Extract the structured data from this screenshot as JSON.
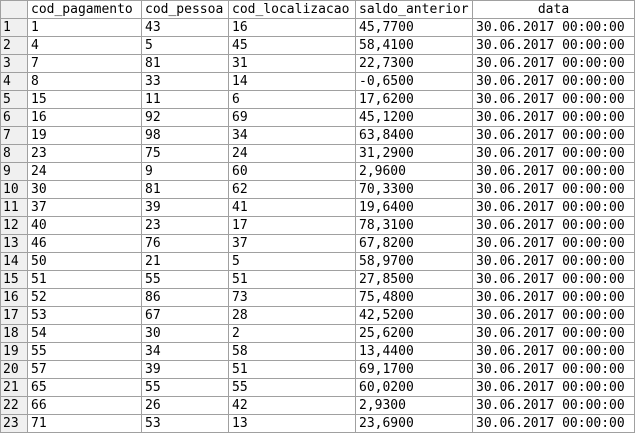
{
  "table": {
    "columns": [
      "cod_pagamento",
      "cod_pessoa",
      "cod_localizacao",
      "saldo_anterior",
      "data"
    ],
    "rows": [
      {
        "n": "1",
        "cod_pagamento": "1",
        "cod_pessoa": "43",
        "cod_localizacao": "16",
        "saldo_anterior": "45,7700",
        "data": "30.06.2017 00:00:00"
      },
      {
        "n": "2",
        "cod_pagamento": "4",
        "cod_pessoa": "5",
        "cod_localizacao": "45",
        "saldo_anterior": "58,4100",
        "data": "30.06.2017 00:00:00"
      },
      {
        "n": "3",
        "cod_pagamento": "7",
        "cod_pessoa": "81",
        "cod_localizacao": "31",
        "saldo_anterior": "22,7300",
        "data": "30.06.2017 00:00:00"
      },
      {
        "n": "4",
        "cod_pagamento": "8",
        "cod_pessoa": "33",
        "cod_localizacao": "14",
        "saldo_anterior": "-0,6500",
        "data": "30.06.2017 00:00:00"
      },
      {
        "n": "5",
        "cod_pagamento": "15",
        "cod_pessoa": "11",
        "cod_localizacao": "6",
        "saldo_anterior": "17,6200",
        "data": "30.06.2017 00:00:00"
      },
      {
        "n": "6",
        "cod_pagamento": "16",
        "cod_pessoa": "92",
        "cod_localizacao": "69",
        "saldo_anterior": "45,1200",
        "data": "30.06.2017 00:00:00"
      },
      {
        "n": "7",
        "cod_pagamento": "19",
        "cod_pessoa": "98",
        "cod_localizacao": "34",
        "saldo_anterior": "63,8400",
        "data": "30.06.2017 00:00:00"
      },
      {
        "n": "8",
        "cod_pagamento": "23",
        "cod_pessoa": "75",
        "cod_localizacao": "24",
        "saldo_anterior": "31,2900",
        "data": "30.06.2017 00:00:00"
      },
      {
        "n": "9",
        "cod_pagamento": "24",
        "cod_pessoa": "9",
        "cod_localizacao": "60",
        "saldo_anterior": "2,9600",
        "data": "30.06.2017 00:00:00"
      },
      {
        "n": "10",
        "cod_pagamento": "30",
        "cod_pessoa": "81",
        "cod_localizacao": "62",
        "saldo_anterior": "70,3300",
        "data": "30.06.2017 00:00:00"
      },
      {
        "n": "11",
        "cod_pagamento": "37",
        "cod_pessoa": "39",
        "cod_localizacao": "41",
        "saldo_anterior": "19,6400",
        "data": "30.06.2017 00:00:00"
      },
      {
        "n": "12",
        "cod_pagamento": "40",
        "cod_pessoa": "23",
        "cod_localizacao": "17",
        "saldo_anterior": "78,3100",
        "data": "30.06.2017 00:00:00"
      },
      {
        "n": "13",
        "cod_pagamento": "46",
        "cod_pessoa": "76",
        "cod_localizacao": "37",
        "saldo_anterior": "67,8200",
        "data": "30.06.2017 00:00:00"
      },
      {
        "n": "14",
        "cod_pagamento": "50",
        "cod_pessoa": "21",
        "cod_localizacao": "5",
        "saldo_anterior": "58,9700",
        "data": "30.06.2017 00:00:00"
      },
      {
        "n": "15",
        "cod_pagamento": "51",
        "cod_pessoa": "55",
        "cod_localizacao": "51",
        "saldo_anterior": "27,8500",
        "data": "30.06.2017 00:00:00"
      },
      {
        "n": "16",
        "cod_pagamento": "52",
        "cod_pessoa": "86",
        "cod_localizacao": "73",
        "saldo_anterior": "75,4800",
        "data": "30.06.2017 00:00:00"
      },
      {
        "n": "17",
        "cod_pagamento": "53",
        "cod_pessoa": "67",
        "cod_localizacao": "28",
        "saldo_anterior": "42,5200",
        "data": "30.06.2017 00:00:00"
      },
      {
        "n": "18",
        "cod_pagamento": "54",
        "cod_pessoa": "30",
        "cod_localizacao": "2",
        "saldo_anterior": "25,6200",
        "data": "30.06.2017 00:00:00"
      },
      {
        "n": "19",
        "cod_pagamento": "55",
        "cod_pessoa": "34",
        "cod_localizacao": "58",
        "saldo_anterior": "13,4400",
        "data": "30.06.2017 00:00:00"
      },
      {
        "n": "20",
        "cod_pagamento": "57",
        "cod_pessoa": "39",
        "cod_localizacao": "51",
        "saldo_anterior": "69,1700",
        "data": "30.06.2017 00:00:00"
      },
      {
        "n": "21",
        "cod_pagamento": "65",
        "cod_pessoa": "55",
        "cod_localizacao": "55",
        "saldo_anterior": "60,0200",
        "data": "30.06.2017 00:00:00"
      },
      {
        "n": "22",
        "cod_pagamento": "66",
        "cod_pessoa": "26",
        "cod_localizacao": "42",
        "saldo_anterior": "2,9300",
        "data": "30.06.2017 00:00:00"
      },
      {
        "n": "23",
        "cod_pagamento": "71",
        "cod_pessoa": "53",
        "cod_localizacao": "13",
        "saldo_anterior": "23,6900",
        "data": "30.06.2017 00:00:00"
      }
    ]
  }
}
